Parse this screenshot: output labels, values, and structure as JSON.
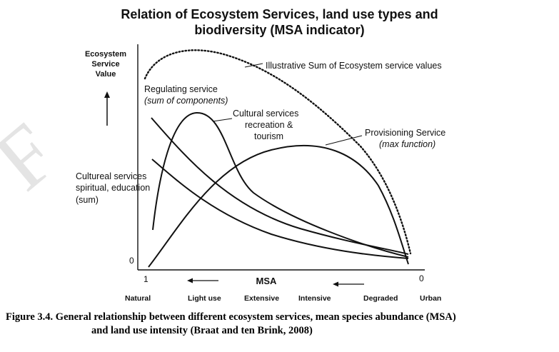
{
  "title": {
    "line1": "Relation of Ecosystem Services, land use types and",
    "line2": "biodiversity (MSA indicator)"
  },
  "y_axis": {
    "label_lines": [
      "Ecosystem",
      "Service",
      "Value"
    ],
    "zero": "0"
  },
  "x_axis": {
    "start": "1",
    "end": "0",
    "label": "MSA",
    "categories": [
      "Natural",
      "Light use",
      "Extensive",
      "Intensive",
      "Degraded",
      "Urban"
    ]
  },
  "annotations": {
    "sum": "Illustrative Sum of Ecosystem service values",
    "regulating_l1": "Regulating service",
    "regulating_l2": "(sum of components)",
    "cultural_rec_l1": "Cultural services",
    "cultural_rec_l2": "recreation &",
    "cultural_rec_l3": "tourism",
    "provisioning_l1": "Provisioning Service",
    "provisioning_l2": "(max function)",
    "cultural_spi_l1": "Cultureal services",
    "cultural_spi_l2": "spiritual, education",
    "cultural_spi_l3": "(sum)"
  },
  "caption": {
    "line1": "Figure 3.4. General relationship between different ecosystem services, mean species abundance (MSA)",
    "line2": "and land use intensity (Braat and ten Brink, 2008)"
  },
  "watermark": "F",
  "colors": {
    "ink": "#111111",
    "watermark": "#e4e4e4"
  }
}
